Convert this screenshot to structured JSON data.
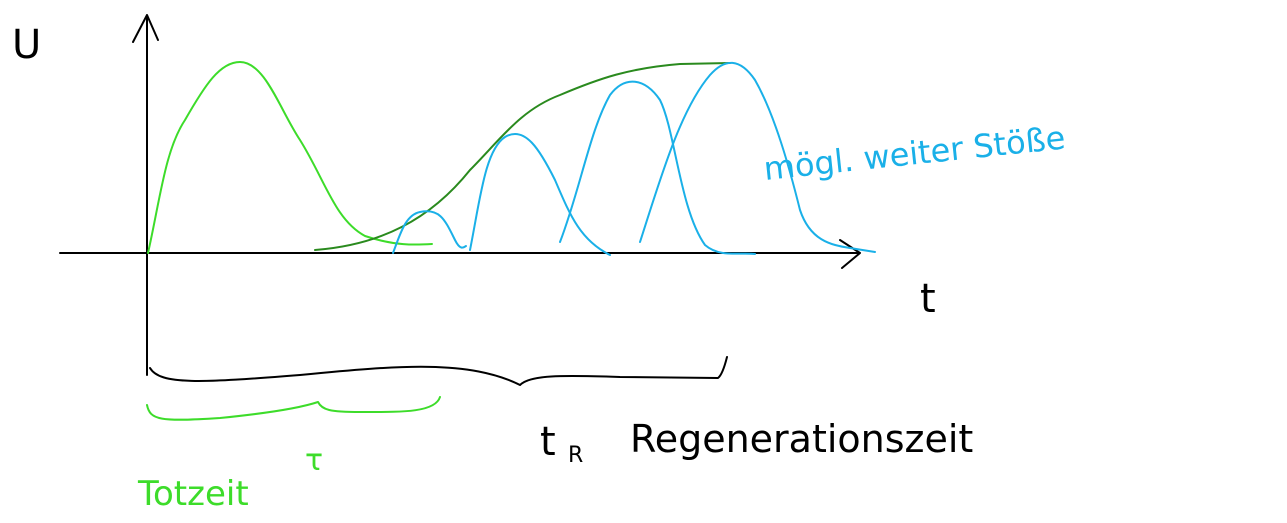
{
  "axes": {
    "y_label": "U",
    "x_label": "t"
  },
  "annotations": {
    "pulses": "mögl. weiter Stöße",
    "recovery_time_symbol": "t",
    "recovery_time_subscript": "R",
    "recovery_time": "Regenerationszeit",
    "dead_time": "Totzeit",
    "dead_time_symbol": "τ"
  }
}
